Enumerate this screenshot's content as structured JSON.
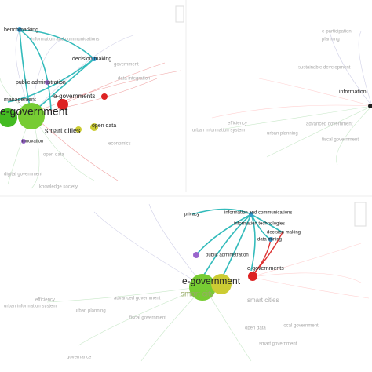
{
  "panels": [
    {
      "labels": [
        "benchmarking",
        "information and communications",
        "decision making",
        "public administration",
        "e-governments",
        "management",
        "e-government",
        "smart cities",
        "open data",
        "innovation",
        "economics",
        "open data",
        "digital government",
        "knowledge society",
        "data integration",
        "government"
      ]
    },
    {
      "labels": [
        "information",
        "efficiency",
        "urban planning",
        "urban information system",
        "planning",
        "fiscal government",
        "advanced government",
        "e-participation",
        "sustainable development"
      ]
    },
    {
      "labels": [
        "privacy",
        "information and communications",
        "information technologies",
        "decision making",
        "data mining",
        "public administration",
        "e-governments",
        "e-government",
        "smart city",
        "smart cities",
        "open data",
        "efficiency",
        "urban planning",
        "urban information system",
        "advanced government",
        "fiscal government",
        "local government",
        "governance",
        "smart government"
      ]
    }
  ]
}
